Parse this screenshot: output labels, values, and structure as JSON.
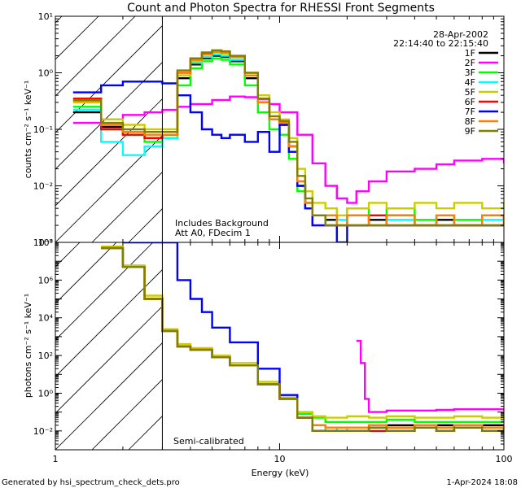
{
  "chart_data": [
    {
      "type": "line",
      "panel": "top",
      "title": "Count and Photon Spectra for RHESSI Front Segments",
      "ylabel": "counts cm⁻² s⁻¹ keV⁻¹",
      "xscale": "log",
      "yscale": "log",
      "xlim": [
        1,
        100
      ],
      "ylim": [
        0.001,
        10
      ],
      "y_tick_labels": [
        "10¹",
        "10⁰",
        "10⁻¹",
        "10⁻²",
        "10⁻³"
      ],
      "y_tick_values": [
        10,
        1,
        0.1,
        0.01,
        0.001
      ],
      "date": "28-Apr-2002",
      "time_range": "22:14:40 to 22:15:40",
      "annotation_1": "Includes Background",
      "annotation_2": "Att A0, FDecim 1",
      "legend_position": "top-right",
      "hatched_below_keV": 3,
      "series": [
        {
          "name": "1F",
          "color": "#000000",
          "x": [
            1.2,
            1.6,
            2.0,
            2.5,
            3.0,
            3.5,
            4.0,
            4.5,
            5.0,
            5.5,
            6.0,
            7.0,
            8.0,
            9.0,
            10.0,
            11.0,
            12.0,
            13.0,
            14.0,
            16.0,
            18.0,
            20.0,
            25.0,
            30.0,
            40.0,
            50.0,
            60.0,
            80.0,
            100.0
          ],
          "y": [
            0.2,
            0.11,
            0.09,
            0.07,
            0.08,
            0.8,
            1.4,
            1.8,
            2.0,
            1.9,
            1.6,
            0.8,
            0.3,
            0.15,
            0.12,
            0.05,
            0.01,
            0.005,
            0.003,
            0.0025,
            0.002,
            0.003,
            0.0025,
            0.003,
            0.002,
            0.0025,
            0.002,
            0.003,
            0.0025
          ]
        },
        {
          "name": "2F",
          "color": "#ff00ff",
          "x": [
            1.2,
            1.6,
            2.0,
            2.5,
            3.0,
            3.5,
            4.0,
            5.0,
            6.0,
            7.0,
            8.0,
            9.0,
            10.0,
            12.0,
            14.0,
            16.0,
            18.0,
            20.0,
            22.0,
            25.0,
            30.0,
            40.0,
            50.0,
            60.0,
            80.0,
            100.0
          ],
          "y": [
            0.13,
            0.15,
            0.18,
            0.2,
            0.22,
            0.25,
            0.28,
            0.33,
            0.38,
            0.37,
            0.34,
            0.28,
            0.2,
            0.08,
            0.025,
            0.01,
            0.006,
            0.005,
            0.008,
            0.012,
            0.018,
            0.02,
            0.024,
            0.028,
            0.03,
            0.025
          ]
        },
        {
          "name": "3F",
          "color": "#00ff00",
          "x": [
            1.2,
            1.6,
            2.0,
            2.5,
            3.0,
            3.5,
            4.0,
            4.5,
            5.0,
            5.5,
            6.0,
            7.0,
            8.0,
            9.0,
            10.0,
            11.0,
            12.0,
            13.0,
            14.0,
            16.0,
            18.0,
            20.0,
            25.0,
            30.0,
            40.0,
            50.0,
            60.0,
            80.0,
            100.0
          ],
          "y": [
            0.25,
            0.1,
            0.08,
            0.06,
            0.07,
            0.6,
            1.2,
            1.6,
            1.8,
            1.7,
            1.4,
            0.6,
            0.2,
            0.1,
            0.08,
            0.03,
            0.008,
            0.004,
            0.003,
            0.003,
            0.002,
            0.004,
            0.003,
            0.004,
            0.0025,
            0.003,
            0.0025,
            0.003,
            0.002
          ]
        },
        {
          "name": "4F",
          "color": "#00ffff",
          "x": [
            1.2,
            1.6,
            2.0,
            2.5,
            3.0,
            3.5,
            4.0,
            4.5,
            5.0,
            5.5,
            6.0,
            7.0,
            8.0,
            9.0,
            10.0,
            11.0,
            12.0,
            13.0,
            14.0,
            16.0,
            18.0,
            20.0,
            25.0,
            30.0,
            40.0,
            50.0,
            60.0,
            80.0,
            100.0
          ],
          "y": [
            0.22,
            0.06,
            0.035,
            0.05,
            0.07,
            0.9,
            1.5,
            1.9,
            2.1,
            2.0,
            1.7,
            0.9,
            0.35,
            0.15,
            0.12,
            0.05,
            0.012,
            0.005,
            0.003,
            0.002,
            0.0025,
            0.003,
            0.002,
            0.0025,
            0.002,
            0.003,
            0.002,
            0.0025,
            0.002
          ]
        },
        {
          "name": "5F",
          "color": "#cccc00",
          "x": [
            1.2,
            1.6,
            2.0,
            2.5,
            3.0,
            3.5,
            4.0,
            4.5,
            5.0,
            5.5,
            6.0,
            7.0,
            8.0,
            9.0,
            10.0,
            11.0,
            12.0,
            13.0,
            14.0,
            16.0,
            18.0,
            20.0,
            25.0,
            30.0,
            40.0,
            50.0,
            60.0,
            80.0,
            100.0
          ],
          "y": [
            0.3,
            0.15,
            0.12,
            0.1,
            0.1,
            0.9,
            1.6,
            2.1,
            2.3,
            2.2,
            1.9,
            1.0,
            0.4,
            0.2,
            0.15,
            0.07,
            0.02,
            0.008,
            0.005,
            0.004,
            0.003,
            0.004,
            0.005,
            0.004,
            0.005,
            0.004,
            0.005,
            0.004,
            0.005
          ]
        },
        {
          "name": "6F",
          "color": "#ff0000",
          "x": [
            1.2,
            1.6,
            2.0,
            2.5,
            3.0,
            3.5,
            4.0,
            4.5,
            5.0,
            5.5,
            6.0,
            7.0,
            8.0,
            9.0,
            10.0,
            11.0,
            12.0,
            13.0,
            14.0,
            16.0,
            18.0,
            20.0,
            25.0,
            30.0,
            40.0,
            50.0,
            60.0,
            80.0,
            100.0
          ],
          "y": [
            0.35,
            0.1,
            0.08,
            0.07,
            0.08,
            1.0,
            1.8,
            2.2,
            2.4,
            2.3,
            1.9,
            0.9,
            0.3,
            0.15,
            0.12,
            0.05,
            0.01,
            0.004,
            0.002,
            0.002,
            0.002,
            0.002,
            0.003,
            0.002,
            0.002,
            0.002,
            0.002,
            0.002,
            0.002
          ]
        },
        {
          "name": "7F",
          "color": "#0000ff",
          "x": [
            1.2,
            1.6,
            2.0,
            2.5,
            3.0,
            3.5,
            4.0,
            4.5,
            5.0,
            5.5,
            6.0,
            7.0,
            8.0,
            9.0,
            10.0,
            11.0,
            12.0,
            13.0,
            14.0,
            16.0,
            18.0,
            20.0,
            25.0,
            30.0,
            40.0,
            50.0,
            60.0,
            80.0,
            100.0
          ],
          "y": [
            0.45,
            0.6,
            0.7,
            0.7,
            0.65,
            0.4,
            0.2,
            0.1,
            0.08,
            0.07,
            0.08,
            0.06,
            0.09,
            0.04,
            0.12,
            0.04,
            0.01,
            0.004,
            0.002,
            0.002,
            0.001,
            0.002,
            0.002,
            0.002,
            0.002,
            0.002,
            0.002,
            0.002,
            0.002
          ]
        },
        {
          "name": "8F",
          "color": "#ff8000",
          "x": [
            1.2,
            1.6,
            2.0,
            2.5,
            3.0,
            3.5,
            4.0,
            4.5,
            5.0,
            5.5,
            6.0,
            7.0,
            8.0,
            9.0,
            10.0,
            11.0,
            12.0,
            13.0,
            14.0,
            16.0,
            18.0,
            20.0,
            25.0,
            30.0,
            40.0,
            50.0,
            60.0,
            80.0,
            100.0
          ],
          "y": [
            0.32,
            0.12,
            0.09,
            0.08,
            0.08,
            1.0,
            1.7,
            2.1,
            2.4,
            2.3,
            1.9,
            0.9,
            0.3,
            0.15,
            0.13,
            0.05,
            0.012,
            0.005,
            0.003,
            0.003,
            0.002,
            0.003,
            0.002,
            0.003,
            0.002,
            0.003,
            0.002,
            0.003,
            0.002
          ]
        },
        {
          "name": "9F",
          "color": "#808000",
          "x": [
            1.2,
            1.6,
            2.0,
            2.5,
            3.0,
            3.5,
            4.0,
            4.5,
            5.0,
            5.5,
            6.0,
            7.0,
            8.0,
            9.0,
            10.0,
            11.0,
            12.0,
            13.0,
            14.0,
            16.0,
            18.0,
            20.0,
            25.0,
            30.0,
            40.0,
            50.0,
            60.0,
            80.0,
            100.0
          ],
          "y": [
            0.33,
            0.13,
            0.1,
            0.09,
            0.09,
            1.1,
            1.8,
            2.3,
            2.5,
            2.4,
            2.0,
            1.0,
            0.35,
            0.17,
            0.14,
            0.06,
            0.015,
            0.006,
            0.003,
            0.002,
            0.002,
            0.002,
            0.002,
            0.002,
            0.002,
            0.002,
            0.002,
            0.002,
            0.002
          ]
        }
      ]
    },
    {
      "type": "line",
      "panel": "bottom",
      "xlabel": "Energy (keV)",
      "ylabel": "photons cm⁻² s⁻¹ keV⁻¹",
      "xscale": "log",
      "yscale": "log",
      "xlim": [
        1,
        100
      ],
      "ylim": [
        0.001,
        100000000
      ],
      "x_tick_labels": [
        "1",
        "10",
        "100"
      ],
      "x_tick_values": [
        1,
        10,
        100
      ],
      "y_tick_labels": [
        "10⁸",
        "10⁶",
        "10⁴",
        "10²",
        "10⁰",
        "10⁻²"
      ],
      "y_tick_values": [
        100000000,
        1000000,
        10000,
        100,
        1,
        0.01
      ],
      "annotation": "Semi-calibrated",
      "hatched_below_keV": 3,
      "series": [
        {
          "name": "1F",
          "color": "#000000",
          "x": [
            1.6,
            2.0,
            2.5,
            3.0,
            3.5,
            4.0,
            5.0,
            6.0,
            8.0,
            10.0,
            12.0,
            14.0,
            16.0,
            18.0,
            20.0,
            25.0,
            30.0,
            40.0,
            50.0,
            60.0,
            80.0,
            100.0
          ],
          "y": [
            50000000,
            5000000,
            100000,
            2000,
            300,
            200,
            80,
            30,
            3,
            0.5,
            0.05,
            0.02,
            0.01,
            0.01,
            0.01,
            0.015,
            0.02,
            0.02,
            0.02,
            0.02,
            0.02,
            0.02
          ]
        },
        {
          "name": "2F",
          "color": "#ff00ff",
          "x": [
            22.0,
            23.0,
            24.0,
            25.0,
            30.0,
            40.0,
            50.0,
            60.0,
            80.0,
            100.0
          ],
          "y": [
            600,
            40,
            0.5,
            0.1,
            0.12,
            0.12,
            0.13,
            0.14,
            0.14,
            0.12
          ]
        },
        {
          "name": "3F",
          "color": "#00ff00",
          "x": [
            1.6,
            2.0,
            2.5,
            3.0,
            3.5,
            4.0,
            5.0,
            6.0,
            8.0,
            10.0,
            12.0,
            14.0,
            16.0,
            18.0,
            20.0,
            25.0,
            30.0,
            40.0,
            50.0,
            60.0,
            80.0,
            100.0
          ],
          "y": [
            50000000,
            5000000,
            100000,
            2000,
            300,
            200,
            80,
            30,
            3,
            0.5,
            0.08,
            0.05,
            0.03,
            0.03,
            0.03,
            0.03,
            0.04,
            0.03,
            0.03,
            0.03,
            0.03,
            0.03
          ]
        },
        {
          "name": "4F",
          "color": "#00ffff",
          "x": [
            1.6,
            2.0,
            2.5,
            3.0,
            3.5,
            4.0,
            5.0,
            6.0,
            8.0,
            10.0,
            12.0,
            14.0,
            16.0,
            18.0,
            20.0,
            25.0,
            30.0,
            40.0,
            50.0,
            60.0,
            80.0,
            100.0
          ],
          "y": [
            50000000,
            5000000,
            100000,
            2000,
            300,
            200,
            80,
            30,
            3,
            0.5,
            0.05,
            0.02,
            0.01,
            0.015,
            0.01,
            0.02,
            0.015,
            0.02,
            0.015,
            0.02,
            0.015,
            0.02
          ]
        },
        {
          "name": "5F",
          "color": "#cccc00",
          "x": [
            1.6,
            2.0,
            2.5,
            3.0,
            3.5,
            4.0,
            5.0,
            6.0,
            8.0,
            10.0,
            12.0,
            14.0,
            16.0,
            18.0,
            20.0,
            25.0,
            30.0,
            40.0,
            50.0,
            60.0,
            80.0,
            100.0
          ],
          "y": [
            60000000,
            6000000,
            150000,
            2500,
            400,
            250,
            100,
            40,
            4,
            0.6,
            0.1,
            0.06,
            0.05,
            0.05,
            0.06,
            0.05,
            0.06,
            0.05,
            0.05,
            0.06,
            0.05,
            0.05
          ]
        },
        {
          "name": "6F",
          "color": "#ff0000",
          "x": [
            1.6,
            2.0,
            2.5,
            3.0,
            3.5,
            4.0,
            5.0,
            6.0,
            8.0,
            10.0,
            12.0,
            14.0,
            16.0,
            18.0,
            20.0,
            25.0,
            30.0,
            40.0,
            50.0,
            60.0,
            80.0,
            100.0
          ],
          "y": [
            50000000,
            5000000,
            100000,
            2000,
            300,
            200,
            80,
            30,
            3,
            0.5,
            0.05,
            0.01,
            0.01,
            0.01,
            0.01,
            0.01,
            0.015,
            0.015,
            0.01,
            0.015,
            0.01,
            0.015
          ]
        },
        {
          "name": "7F",
          "color": "#0000ff",
          "x": [
            2.0,
            2.5,
            3.0,
            3.5,
            4.0,
            4.5,
            5.0,
            6.0,
            8.0,
            10.0,
            12.0,
            14.0,
            16.0,
            18.0,
            20.0,
            25.0,
            30.0,
            40.0,
            50.0,
            60.0,
            80.0,
            100.0
          ],
          "y": [
            100000000,
            100000000,
            100000000,
            1000000,
            100000,
            20000,
            3000,
            500,
            20,
            0.8,
            0.05,
            0.01,
            0.01,
            0.01,
            0.01,
            0.015,
            0.01,
            0.015,
            0.01,
            0.015,
            0.01,
            0.015
          ]
        },
        {
          "name": "8F",
          "color": "#ff8000",
          "x": [
            1.6,
            2.0,
            2.5,
            3.0,
            3.5,
            4.0,
            5.0,
            6.0,
            8.0,
            10.0,
            12.0,
            14.0,
            16.0,
            18.0,
            20.0,
            25.0,
            30.0,
            40.0,
            50.0,
            60.0,
            80.0,
            100.0
          ],
          "y": [
            50000000,
            5000000,
            100000,
            2000,
            300,
            200,
            80,
            30,
            3,
            0.5,
            0.05,
            0.02,
            0.015,
            0.015,
            0.015,
            0.02,
            0.015,
            0.02,
            0.015,
            0.02,
            0.015,
            0.02
          ]
        },
        {
          "name": "9F",
          "color": "#808000",
          "x": [
            1.6,
            2.0,
            2.5,
            3.0,
            3.5,
            4.0,
            5.0,
            6.0,
            8.0,
            10.0,
            12.0,
            14.0,
            16.0,
            18.0,
            20.0,
            25.0,
            30.0,
            40.0,
            50.0,
            60.0,
            80.0,
            100.0
          ],
          "y": [
            50000000,
            5000000,
            100000,
            2000,
            300,
            200,
            80,
            30,
            3,
            0.5,
            0.05,
            0.01,
            0.01,
            0.01,
            0.01,
            0.015,
            0.01,
            0.015,
            0.01,
            0.015,
            0.01,
            0.015
          ]
        }
      ]
    }
  ],
  "footer": {
    "generated_by": "Generated by hsi_spectrum_check_dets.pro",
    "timestamp": "1-Apr-2024 18:08"
  }
}
